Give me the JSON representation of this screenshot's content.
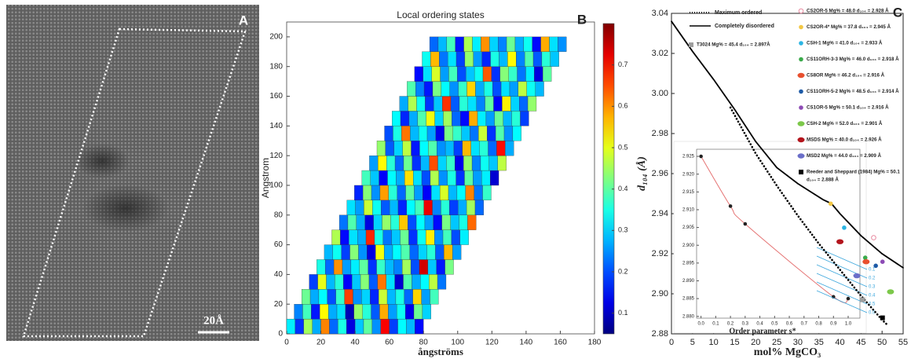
{
  "chart_data": [
    {
      "type": "image",
      "label": "A",
      "scale_bar": "20Å"
    },
    {
      "type": "heatmap",
      "title": "Local ordering states",
      "label": "B",
      "xlabel": "ångströms",
      "ylabel": "Angstrom",
      "xlim": [
        0,
        180
      ],
      "ylim": [
        0,
        210
      ],
      "xticks": [
        0,
        20,
        40,
        60,
        80,
        100,
        120,
        140,
        160,
        180
      ],
      "yticks": [
        0,
        20,
        40,
        60,
        80,
        100,
        120,
        140,
        160,
        180,
        200
      ],
      "clim": [
        0.05,
        0.8
      ],
      "cticks": [
        0.1,
        0.2,
        0.3,
        0.4,
        0.5,
        0.6,
        0.7
      ],
      "colormap": "jet",
      "cell_size": [
        5,
        10
      ],
      "row_y": [
        0,
        10,
        20,
        30,
        40,
        50,
        60,
        70,
        80,
        90,
        100,
        110,
        120,
        130,
        140,
        150,
        160,
        170,
        180,
        190
      ],
      "row_x": [
        0,
        4.4,
        8.8,
        13.2,
        17.6,
        22,
        26.4,
        30.8,
        35.2,
        39.6,
        44,
        48.4,
        52.8,
        57.2,
        61.6,
        66,
        70.4,
        74.8,
        79.2,
        83.6
      ],
      "z": [
        [
          0.32,
          0.18,
          0.45,
          0.27,
          0.61,
          0.22,
          0.35,
          0.12,
          0.29,
          0.4,
          0.25,
          0.71,
          0.19,
          0.33,
          0.28,
          0.15
        ],
        [
          0.24,
          0.38,
          0.16,
          0.52,
          0.27,
          0.31,
          0.09,
          0.44,
          0.36,
          0.21,
          0.58,
          0.26,
          0.34,
          0.13,
          0.41,
          0.3
        ],
        [
          0.41,
          0.27,
          0.33,
          0.2,
          0.37,
          0.66,
          0.25,
          0.3,
          0.17,
          0.48,
          0.28,
          0.35,
          0.22,
          0.55,
          0.26,
          0.38
        ],
        [
          0.19,
          0.5,
          0.28,
          0.36,
          0.14,
          0.29,
          0.43,
          0.21,
          0.62,
          0.31,
          0.11,
          0.39,
          0.27,
          0.33,
          0.47,
          0.23
        ],
        [
          0.35,
          0.22,
          0.6,
          0.26,
          0.32,
          0.4,
          0.18,
          0.37,
          0.28,
          0.24,
          0.45,
          0.2,
          0.74,
          0.29,
          0.16,
          0.42
        ],
        [
          0.28,
          0.34,
          0.19,
          0.43,
          0.25,
          0.12,
          0.51,
          0.27,
          0.33,
          0.39,
          0.22,
          0.3,
          0.36,
          0.21,
          0.57,
          0.26
        ],
        [
          0.46,
          0.15,
          0.31,
          0.27,
          0.68,
          0.35,
          0.23,
          0.29,
          0.41,
          0.18,
          0.34,
          0.53,
          0.25,
          0.38,
          0.2,
          0.32
        ],
        [
          0.23,
          0.39,
          0.27,
          0.12,
          0.3,
          0.44,
          0.36,
          0.56,
          0.2,
          0.33,
          0.26,
          0.15,
          0.42,
          0.29,
          0.35,
          0.63
        ],
        [
          0.31,
          0.26,
          0.48,
          0.34,
          0.21,
          0.28,
          0.17,
          0.33,
          0.38,
          0.72,
          0.24,
          0.36,
          0.19,
          0.27,
          0.45,
          0.22
        ],
        [
          0.17,
          0.43,
          0.25,
          0.59,
          0.36,
          0.22,
          0.4,
          0.26,
          0.14,
          0.31,
          0.49,
          0.28,
          0.33,
          0.61,
          0.23,
          0.37
        ],
        [
          0.38,
          0.29,
          0.14,
          0.33,
          0.27,
          0.54,
          0.31,
          0.2,
          0.46,
          0.25,
          0.35,
          0.18,
          0.4,
          0.26,
          0.32,
          0.11
        ],
        [
          0.26,
          0.52,
          0.36,
          0.22,
          0.41,
          0.18,
          0.28,
          0.65,
          0.3,
          0.37,
          0.13,
          0.44,
          0.24,
          0.34,
          0.29,
          0.47
        ],
        [
          0.44,
          0.21,
          0.3,
          0.47,
          0.16,
          0.33,
          0.39,
          0.25,
          0.28,
          0.19,
          0.57,
          0.31,
          0.36,
          0.22,
          0.7,
          0.27
        ],
        [
          0.2,
          0.35,
          0.62,
          0.28,
          0.34,
          0.26,
          0.13,
          0.42,
          0.37,
          0.29,
          0.23,
          0.48,
          0.18,
          0.39,
          0.25,
          0.33
        ],
        [
          0.33,
          0.17,
          0.27,
          0.39,
          0.51,
          0.3,
          0.45,
          0.22,
          0.15,
          0.58,
          0.32,
          0.26,
          0.41,
          0.28,
          0.36,
          0.19
        ],
        [
          0.27,
          0.46,
          0.34,
          0.18,
          0.29,
          0.67,
          0.21,
          0.36,
          0.31,
          0.24,
          0.4,
          0.14,
          0.53,
          0.3,
          0.22,
          0.44
        ],
        [
          0.39,
          0.24,
          0.16,
          0.42,
          0.33,
          0.25,
          0.37,
          0.55,
          0.27,
          0.35,
          0.2,
          0.31,
          0.26,
          0.47,
          0.34,
          0.28
        ],
        [
          0.15,
          0.31,
          0.49,
          0.26,
          0.38,
          0.2,
          0.29,
          0.34,
          0.64,
          0.18,
          0.43,
          0.37,
          0.23,
          0.32,
          0.12,
          0.4
        ],
        [
          0.34,
          0.57,
          0.23,
          0.31,
          0.19,
          0.44,
          0.26,
          0.17,
          0.35,
          0.28,
          0.52,
          0.24,
          0.39,
          0.21,
          0.36,
          0.29
        ],
        [
          0.22,
          0.28,
          0.38,
          0.16,
          0.46,
          0.32,
          0.6,
          0.3,
          0.24,
          0.41,
          0.27,
          0.34,
          0.15,
          0.58,
          0.31,
          0.25
        ]
      ]
    },
    {
      "type": "line",
      "label": "C",
      "xlabel": "mol% MgCO₃",
      "ylabel": "d₁₀₄ (Å)",
      "xlim": [
        0,
        55
      ],
      "ylim": [
        2.88,
        3.04
      ],
      "xticks": [
        0,
        5,
        10,
        15,
        20,
        25,
        30,
        35,
        40,
        45,
        50,
        55
      ],
      "yticks": [
        2.88,
        {
          "value": 2.9,
          "label": "2.90"
        },
        2.92,
        2.94,
        2.96,
        2.98,
        {
          "value": 3,
          "label": "3.00"
        },
        3.02,
        3.04
      ],
      "series": [
        {
          "name": "Maximum ordered",
          "color": "#000000",
          "style": "dotted",
          "x": [
            14,
            20,
            25,
            30,
            35,
            40,
            45,
            50,
            51
          ],
          "values": [
            2.993,
            2.97,
            2.954,
            2.939,
            2.925,
            2.912,
            2.899,
            2.887,
            2.885
          ]
        },
        {
          "name": "Completely disordered",
          "color": "#000000",
          "style": "solid",
          "x": [
            0,
            5,
            10,
            15,
            20,
            25,
            30,
            33,
            36,
            38,
            40,
            45,
            50,
            55
          ],
          "values": [
            3.036,
            3.021,
            3.007,
            2.992,
            2.976,
            2.963,
            2.955,
            2.951,
            2.947,
            2.945,
            2.94,
            2.929,
            2.92,
            2.913
          ]
        }
      ],
      "points": [
        {
          "name": "T3024  Mg% = 45.4  d₁₀₄ = 2.897Å",
          "color": "#9e9e9e",
          "marker": "square",
          "legend": "upper-left",
          "x": 45.4,
          "value": 2.897
        },
        {
          "name": "CS2OR-5  Mg% = 48.0  d₁₀₄ = 2.928 Å",
          "color": "#e88aa0",
          "marker": "hollow",
          "legend": "upper-right",
          "x": 48.0,
          "value": 2.928
        },
        {
          "name": "CS2OR-4*  Mg% = 37.8  d₁₀₄ = 2.945 Å",
          "color": "#f2c744",
          "marker": "circle",
          "legend": "upper-right",
          "x": 37.8,
          "value": 2.945
        },
        {
          "name": "CSH-1  Mg% = 41.0  d₁₀₄ = 2.933 Å",
          "color": "#2bb5e3",
          "marker": "circle",
          "legend": "upper-right",
          "x": 41.0,
          "value": 2.933
        },
        {
          "name": "CS11ORH-3-3  Mg% = 46.0  d₁₀₄ = 2.918 Å",
          "color": "#3aaa4a",
          "marker": "circle",
          "legend": "upper-right",
          "x": 46.0,
          "value": 2.918
        },
        {
          "name": "CS8OR  Mg% = 46.2  d₁₀₄ = 2.916 Å",
          "color": "#e8502f",
          "marker": "ellipse",
          "legend": "upper-right",
          "x": 46.2,
          "value": 2.916
        },
        {
          "name": "CS11ORH-5-2  Mg% = 48.5  d₁₀₄ = 2.914 Å",
          "color": "#1d5aa6",
          "marker": "circle",
          "legend": "upper-right",
          "x": 48.5,
          "value": 2.914
        },
        {
          "name": "CS1OR-5  Mg% = 50.1  d₁₀₄ = 2.916 Å",
          "color": "#8d4bb5",
          "marker": "circle",
          "legend": "upper-right",
          "x": 50.1,
          "value": 2.916
        },
        {
          "name": "CSH-2  Mg% = 52.0  d₁₀₄ = 2.901 Å",
          "color": "#7cc84a",
          "marker": "ellipse",
          "legend": "upper-right",
          "x": 52.0,
          "value": 2.901
        },
        {
          "name": "MSDS  Mg% = 40.0  d₁₀₄ = 2.926 Å",
          "color": "#b3141c",
          "marker": "ellipse",
          "legend": "upper-right",
          "x": 40.0,
          "value": 2.926
        },
        {
          "name": "MSD2  Mg% = 44.0  d₁₀₄ = 2.909 Å",
          "color": "#6b6fc9",
          "marker": "ellipse",
          "legend": "upper-right",
          "x": 44.0,
          "value": 2.909
        },
        {
          "name": "Reeder and Sheppard (1984)  Mg% = 50.1",
          "name_line2": "d₁₀₄ = 2.888 Å",
          "color": "#000000",
          "marker": "square",
          "legend": "upper-right",
          "x": 50.1,
          "value": 2.888
        }
      ],
      "inset": {
        "xlabel": "Order parameter s*",
        "xlim": [
          -0.03,
          1.08
        ],
        "ylim": [
          2.8795,
          2.927
        ],
        "xticks": [
          {
            "value": 0,
            "label": "0.0"
          },
          0.1,
          0.2,
          0.3,
          0.4,
          0.5,
          0.6,
          0.7,
          0.8,
          0.9,
          {
            "value": 1,
            "label": "1.0"
          }
        ],
        "yticks": [
          {
            "value": 2.88,
            "label": "2.880"
          },
          2.885,
          {
            "value": 2.89,
            "label": "2.890"
          },
          2.895,
          {
            "value": 2.9,
            "label": "2.900"
          },
          2.905,
          {
            "value": 2.91,
            "label": "2.910"
          },
          2.915,
          {
            "value": 2.92,
            "label": "2.920"
          },
          2.925
        ],
        "x": [
          0,
          0.2,
          0.3,
          0.9,
          1.0
        ],
        "values": [
          2.925,
          2.911,
          2.906,
          2.8855,
          2.885
        ],
        "color": "#e57373",
        "iso_lines": [
          0.1,
          0.2,
          0.3,
          0.4,
          0.5,
          0.9
        ],
        "iso_color": "#3aa6dd"
      }
    }
  ]
}
